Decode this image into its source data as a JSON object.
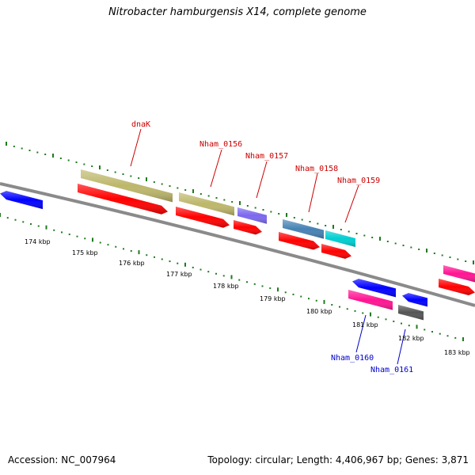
{
  "title": "Nitrobacter hamburgensis X14, complete genome",
  "footer": {
    "accession": "Accession: NC_007964",
    "summary": "Topology: circular; Length: 4,406,967 bp; Genes: 3,871"
  },
  "colors": {
    "backbone": "#8a8a8a",
    "tick": "#1f7a1f",
    "label_forward": "#cc0000",
    "label_reverse": "#0000cc",
    "cds": "#ff0000",
    "gene_olive": "#bdb76b",
    "gene_slateblue": "#7b68ee",
    "gene_steelblue": "#4682b4",
    "gene_cyan": "#00ced1",
    "gene_blue": "#0000ff",
    "gene_pink": "#ff1493",
    "gene_gray": "#555555"
  },
  "scale_labels": [
    {
      "kbp": 174,
      "text": "174 kbp"
    },
    {
      "kbp": 175,
      "text": "175 kbp"
    },
    {
      "kbp": 176,
      "text": "176 kbp"
    },
    {
      "kbp": 177,
      "text": "177 kbp"
    },
    {
      "kbp": 178,
      "text": "178 kbp"
    },
    {
      "kbp": 179,
      "text": "179 kbp"
    },
    {
      "kbp": 180,
      "text": "180 kbp"
    },
    {
      "kbp": 181,
      "text": "181 kbp"
    },
    {
      "kbp": 182,
      "text": "182 kbp"
    },
    {
      "kbp": 183,
      "text": "183 kbp"
    }
  ],
  "genes": [
    {
      "name": "dnaK",
      "strand": "+"
    },
    {
      "name": "Nham_0156",
      "strand": "+"
    },
    {
      "name": "Nham_0157",
      "strand": "+"
    },
    {
      "name": "Nham_0158",
      "strand": "+"
    },
    {
      "name": "Nham_0159",
      "strand": "+"
    },
    {
      "name": "Nham_0160",
      "strand": "-"
    },
    {
      "name": "Nham_0161",
      "strand": "-"
    }
  ]
}
